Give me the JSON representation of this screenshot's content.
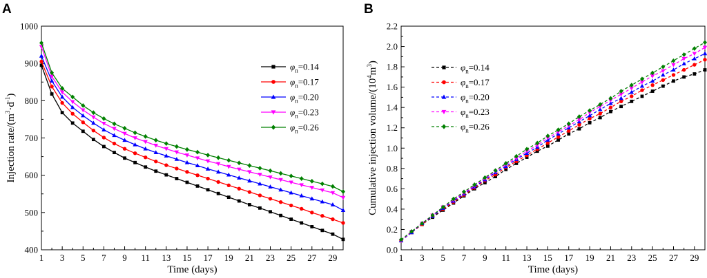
{
  "chart_data": [
    {
      "panel": "A",
      "type": "line",
      "line_style": "solid",
      "xlabel": "Time (days)",
      "ylabel": "Injection rate/(m³·d⁻¹)",
      "ylabel_parts": {
        "main": "Injection rate/(m",
        "sup1": "3",
        "mid": "·d",
        "sup2": "-1",
        "end": ")"
      },
      "xlim": [
        1,
        30
      ],
      "ylim": [
        400,
        1000
      ],
      "xticks": [
        "1",
        "3",
        "5",
        "7",
        "9",
        "11",
        "13",
        "15",
        "17",
        "19",
        "21",
        "23",
        "25",
        "27",
        "29"
      ],
      "yticks": [
        "400",
        "500",
        "600",
        "700",
        "800",
        "900",
        "1000"
      ],
      "legend_position": "upper-right",
      "x": [
        1,
        2,
        3,
        4,
        5,
        6,
        7,
        8,
        9,
        10,
        11,
        12,
        13,
        14,
        15,
        16,
        17,
        18,
        19,
        20,
        21,
        22,
        23,
        24,
        25,
        26,
        27,
        28,
        29,
        30
      ],
      "series": [
        {
          "name": "φn=0.14",
          "symbol": "φ",
          "subscript": "n",
          "value": "=0.14",
          "color": "#000000",
          "marker": "square",
          "values": [
            895,
            818,
            768,
            740,
            718,
            696,
            677,
            661,
            646,
            634,
            622,
            611,
            601,
            591,
            581,
            571,
            561,
            551,
            541,
            531,
            521,
            512,
            502,
            492,
            482,
            472,
            462,
            452,
            442,
            428
          ]
        },
        {
          "name": "φn=0.17",
          "symbol": "φ",
          "subscript": "n",
          "value": "=0.17",
          "color": "#ff0000",
          "marker": "circle",
          "values": [
            905,
            838,
            794,
            765,
            742,
            720,
            701,
            685,
            671,
            659,
            648,
            637,
            627,
            618,
            609,
            600,
            591,
            582,
            573,
            564,
            555,
            546,
            537,
            528,
            519,
            510,
            500,
            491,
            482,
            472
          ]
        },
        {
          "name": "φn=0.20",
          "symbol": "φ",
          "subscript": "n",
          "value": "=0.20",
          "color": "#0000ff",
          "marker": "triangle-up",
          "values": [
            920,
            853,
            810,
            782,
            760,
            740,
            722,
            707,
            694,
            682,
            671,
            661,
            652,
            643,
            634,
            626,
            617,
            609,
            601,
            593,
            585,
            577,
            569,
            561,
            553,
            545,
            537,
            529,
            521,
            506
          ]
        },
        {
          "name": "φn=0.23",
          "symbol": "φ",
          "subscript": "n",
          "value": "=0.23",
          "color": "#ff00ff",
          "marker": "triangle-down",
          "values": [
            945,
            865,
            823,
            797,
            775,
            756,
            739,
            725,
            712,
            700,
            690,
            680,
            671,
            662,
            654,
            646,
            638,
            631,
            623,
            616,
            609,
            602,
            595,
            588,
            581,
            574,
            567,
            560,
            553,
            540
          ]
        },
        {
          "name": "φn=0.26",
          "symbol": "φ",
          "subscript": "n",
          "value": "=0.26",
          "color": "#008000",
          "marker": "diamond",
          "values": [
            955,
            875,
            833,
            810,
            787,
            768,
            752,
            738,
            726,
            714,
            704,
            694,
            685,
            677,
            669,
            662,
            654,
            647,
            640,
            633,
            626,
            619,
            612,
            605,
            598,
            591,
            584,
            577,
            570,
            556
          ]
        }
      ]
    },
    {
      "panel": "B",
      "type": "line",
      "line_style": "dashed",
      "xlabel": "Time (days)",
      "ylabel": "Cumulative injection volume/(10⁴m³)",
      "ylabel_parts": {
        "main": "Cumulative injection volume/(10",
        "sup1": "4",
        "mid": "m",
        "sup2": "3",
        "end": ")"
      },
      "xlim": [
        1,
        30
      ],
      "ylim": [
        0.0,
        2.2
      ],
      "xticks": [
        "1",
        "3",
        "5",
        "7",
        "9",
        "11",
        "13",
        "15",
        "17",
        "19",
        "21",
        "23",
        "25",
        "27",
        "29"
      ],
      "yticks": [
        "0.0",
        "0.2",
        "0.4",
        "0.6",
        "0.8",
        "1.0",
        "1.2",
        "1.4",
        "1.6",
        "1.8",
        "2.0",
        "2.2"
      ],
      "legend_position": "upper-left",
      "x": [
        1,
        2,
        3,
        4,
        5,
        6,
        7,
        8,
        9,
        10,
        11,
        12,
        13,
        14,
        15,
        16,
        17,
        18,
        19,
        20,
        21,
        22,
        23,
        24,
        25,
        26,
        27,
        28,
        29,
        30
      ],
      "series": [
        {
          "name": "φn=0.14",
          "symbol": "φ",
          "subscript": "n",
          "value": "=0.14",
          "color": "#000000",
          "marker": "square",
          "values": [
            0.09,
            0.17,
            0.25,
            0.32,
            0.39,
            0.46,
            0.53,
            0.6,
            0.66,
            0.72,
            0.79,
            0.85,
            0.91,
            0.97,
            1.02,
            1.08,
            1.14,
            1.19,
            1.25,
            1.3,
            1.36,
            1.41,
            1.46,
            1.51,
            1.56,
            1.61,
            1.66,
            1.7,
            1.73,
            1.77
          ]
        },
        {
          "name": "φn=0.17",
          "symbol": "φ",
          "subscript": "n",
          "value": "=0.17",
          "color": "#ff0000",
          "marker": "circle",
          "values": [
            0.09,
            0.17,
            0.25,
            0.33,
            0.4,
            0.47,
            0.54,
            0.61,
            0.68,
            0.74,
            0.81,
            0.87,
            0.93,
            0.99,
            1.05,
            1.11,
            1.17,
            1.23,
            1.29,
            1.34,
            1.4,
            1.46,
            1.51,
            1.57,
            1.62,
            1.67,
            1.72,
            1.77,
            1.82,
            1.87
          ]
        },
        {
          "name": "φn=0.20",
          "symbol": "φ",
          "subscript": "n",
          "value": "=0.20",
          "color": "#0000ff",
          "marker": "triangle-up",
          "values": [
            0.09,
            0.17,
            0.26,
            0.33,
            0.41,
            0.48,
            0.55,
            0.62,
            0.69,
            0.76,
            0.82,
            0.89,
            0.95,
            1.01,
            1.08,
            1.14,
            1.2,
            1.26,
            1.32,
            1.38,
            1.44,
            1.49,
            1.55,
            1.61,
            1.66,
            1.72,
            1.77,
            1.83,
            1.88,
            1.93
          ]
        },
        {
          "name": "φn=0.23",
          "symbol": "φ",
          "subscript": "n",
          "value": "=0.23",
          "color": "#ff00ff",
          "marker": "triangle-down",
          "values": [
            0.09,
            0.18,
            0.26,
            0.34,
            0.42,
            0.49,
            0.56,
            0.63,
            0.7,
            0.77,
            0.84,
            0.9,
            0.97,
            1.03,
            1.1,
            1.16,
            1.22,
            1.28,
            1.35,
            1.41,
            1.47,
            1.53,
            1.59,
            1.65,
            1.71,
            1.76,
            1.82,
            1.88,
            1.93,
            1.99
          ]
        },
        {
          "name": "φn=0.26",
          "symbol": "φ",
          "subscript": "n",
          "value": "=0.26",
          "color": "#008000",
          "marker": "diamond",
          "values": [
            0.1,
            0.18,
            0.26,
            0.34,
            0.42,
            0.5,
            0.57,
            0.64,
            0.71,
            0.78,
            0.85,
            0.92,
            0.99,
            1.05,
            1.12,
            1.18,
            1.24,
            1.31,
            1.37,
            1.43,
            1.49,
            1.56,
            1.62,
            1.68,
            1.74,
            1.8,
            1.86,
            1.92,
            1.98,
            2.04
          ]
        }
      ]
    }
  ]
}
